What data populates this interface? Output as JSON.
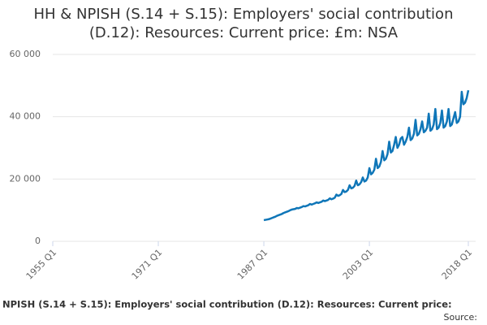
{
  "chart_data": {
    "type": "line",
    "title": "HH & NPISH (S.14 + S.15): Employers' social contribution (D.12): Resources: Current price: £m: NSA",
    "footer": "NPISH (S.14 + S.15): Employers' social contribution (D.12): Resources: Current price:",
    "source": "Source:",
    "color": "#0f76b8",
    "grid": true,
    "xlim": [
      1955,
      2018
    ],
    "xticks": [
      {
        "value": 1955,
        "label": "1955 Q1"
      },
      {
        "value": 1971,
        "label": "1971 Q1"
      },
      {
        "value": 1987,
        "label": "1987 Q1"
      },
      {
        "value": 2003,
        "label": "2003 Q1"
      },
      {
        "value": 2018,
        "label": "2018 Q1"
      }
    ],
    "ylim": [
      0,
      60000
    ],
    "yticks": [
      0,
      {
        "value": 20000,
        "label": "20 000"
      },
      {
        "value": 40000,
        "label": "40 000"
      },
      {
        "value": 60000,
        "label": "60 000"
      }
    ],
    "x": [
      1987,
      1987.25,
      1987.5,
      1987.75,
      1988,
      1988.25,
      1988.5,
      1988.75,
      1989,
      1989.25,
      1989.5,
      1989.75,
      1990,
      1990.25,
      1990.5,
      1990.75,
      1991,
      1991.25,
      1991.5,
      1991.75,
      1992,
      1992.25,
      1992.5,
      1992.75,
      1993,
      1993.25,
      1993.5,
      1993.75,
      1994,
      1994.25,
      1994.5,
      1994.75,
      1995,
      1995.25,
      1995.5,
      1995.75,
      1996,
      1996.25,
      1996.5,
      1996.75,
      1997,
      1997.25,
      1997.5,
      1997.75,
      1998,
      1998.25,
      1998.5,
      1998.75,
      1999,
      1999.25,
      1999.5,
      1999.75,
      2000,
      2000.25,
      2000.5,
      2000.75,
      2001,
      2001.25,
      2001.5,
      2001.75,
      2002,
      2002.25,
      2002.5,
      2002.75,
      2003,
      2003.25,
      2003.5,
      2003.75,
      2004,
      2004.25,
      2004.5,
      2004.75,
      2005,
      2005.25,
      2005.5,
      2005.75,
      2006,
      2006.25,
      2006.5,
      2006.75,
      2007,
      2007.25,
      2007.5,
      2007.75,
      2008,
      2008.25,
      2008.5,
      2008.75,
      2009,
      2009.25,
      2009.5,
      2009.75,
      2010,
      2010.25,
      2010.5,
      2010.75,
      2011,
      2011.25,
      2011.5,
      2011.75,
      2012,
      2012.25,
      2012.5,
      2012.75,
      2013,
      2013.25,
      2013.5,
      2013.75,
      2014,
      2014.25,
      2014.5,
      2014.75,
      2015,
      2015.25,
      2015.5,
      2015.75,
      2016,
      2016.25,
      2016.5,
      2016.75,
      2017,
      2017.25,
      2017.5,
      2017.75,
      2018
    ],
    "values": [
      6800,
      6900,
      7000,
      7100,
      7300,
      7500,
      7700,
      7900,
      8200,
      8400,
      8600,
      8800,
      9100,
      9300,
      9500,
      9700,
      10000,
      10200,
      10300,
      10400,
      10700,
      10600,
      10800,
      11000,
      11300,
      11200,
      11400,
      11600,
      12000,
      11800,
      12000,
      12200,
      12500,
      12300,
      12500,
      12700,
      13100,
      12900,
      13100,
      13300,
      13800,
      13500,
      13700,
      14000,
      15000,
      14600,
      14800,
      15200,
      16500,
      15800,
      16000,
      16500,
      18000,
      17000,
      17200,
      17800,
      19500,
      18000,
      18300,
      19000,
      20500,
      19200,
      19500,
      20500,
      23500,
      21500,
      22000,
      23000,
      26500,
      23500,
      24000,
      25500,
      29000,
      26000,
      26500,
      28000,
      32000,
      28500,
      29000,
      31000,
      33500,
      30000,
      31000,
      33000,
      33500,
      31000,
      32000,
      33500,
      36500,
      32500,
      33000,
      34500,
      39000,
      34000,
      34500,
      36000,
      38500,
      35000,
      35500,
      36500,
      41000,
      35500,
      36000,
      37500,
      42500,
      36000,
      36500,
      38000,
      42000,
      36500,
      37000,
      38500,
      42500,
      37000,
      37500,
      39500,
      41500,
      38000,
      38500,
      40000,
      48000,
      44000,
      44500,
      46000,
      48500
    ]
  }
}
